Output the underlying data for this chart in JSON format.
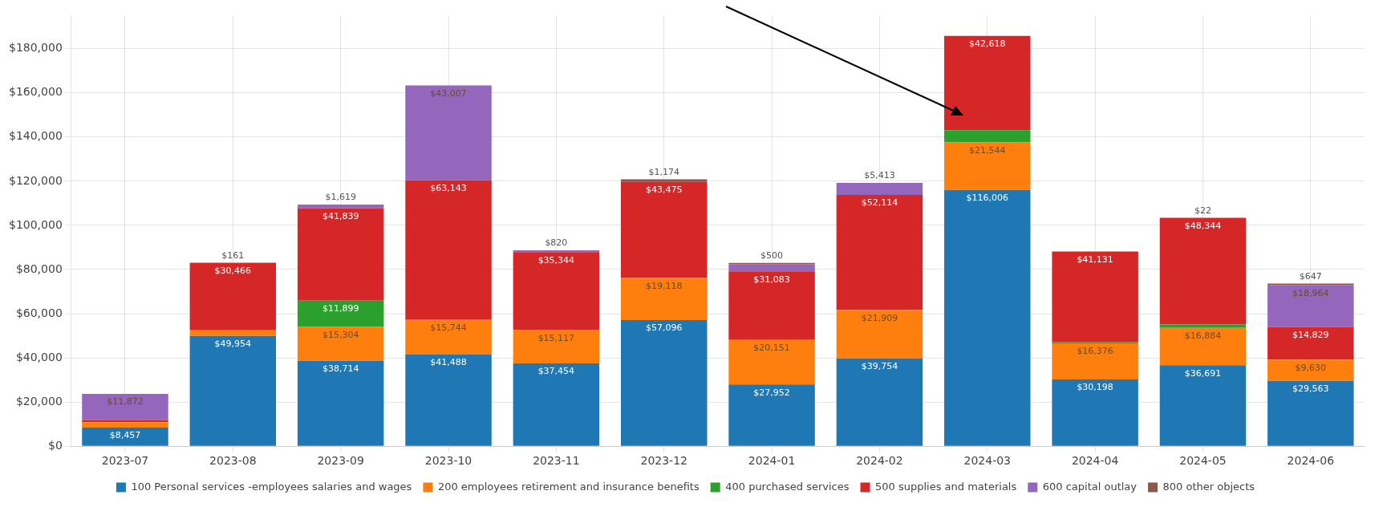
{
  "chart_data": {
    "type": "bar",
    "stacked": true,
    "categories": [
      "2023-07",
      "2023-08",
      "2023-09",
      "2023-10",
      "2023-11",
      "2023-12",
      "2024-01",
      "2024-02",
      "2024-03",
      "2024-04",
      "2024-05",
      "2024-06"
    ],
    "series": [
      {
        "name": "100 Personal services -employees salaries and wages",
        "color": "#1f77b4",
        "values": [
          8457,
          49954,
          38714,
          41488,
          37454,
          57096,
          27952,
          39754,
          116006,
          30198,
          36691,
          29563
        ],
        "value_labels": [
          "$8,457",
          "$49,954",
          "$38,714",
          "$41,488",
          "$37,454",
          "$57,096",
          "$27,952",
          "$39,754",
          "$116,006",
          "$30,198",
          "$36,691",
          "$29,563"
        ]
      },
      {
        "name": "200 employees retirement and insurance benefits",
        "color": "#ff7f0e",
        "values": [
          2400,
          2500,
          15304,
          15744,
          15117,
          19118,
          20151,
          21909,
          21544,
          16376,
          16884,
          9630
        ],
        "value_labels": [
          null,
          null,
          "$15,304",
          "$15,744",
          "$15,117",
          "$19,118",
          "$20,151",
          "$21,909",
          "$21,544",
          "$16,376",
          "$16,884",
          "$9,630"
        ]
      },
      {
        "name": "400 purchased services",
        "color": "#2ca02c",
        "values": [
          null,
          null,
          11899,
          null,
          null,
          null,
          null,
          null,
          5600,
          500,
          1500,
          null
        ],
        "value_labels": [
          null,
          null,
          "$11,899",
          null,
          null,
          null,
          null,
          null,
          null,
          null,
          null,
          null
        ]
      },
      {
        "name": "500 supplies and materials",
        "color": "#d62728",
        "values": [
          1000,
          30466,
          41839,
          63143,
          35344,
          43475,
          31083,
          52114,
          42618,
          41131,
          48344,
          14829
        ],
        "value_labels": [
          null,
          "$30,466",
          "$41,839",
          "$63,143",
          "$35,344",
          "$43,475",
          "$31,083",
          "$52,114",
          "$42,618",
          "$41,131",
          "$48,344",
          "$14,829"
        ]
      },
      {
        "name": "600 capital outlay",
        "color": "#9467bd",
        "values": [
          11872,
          null,
          1619,
          43007,
          820,
          null,
          3300,
          5413,
          null,
          null,
          null,
          18964
        ],
        "value_labels": [
          "$11,872",
          null,
          "$1,619",
          "$43,007",
          "$820",
          null,
          null,
          "$5,413",
          null,
          null,
          null,
          "$18,964"
        ]
      },
      {
        "name": "800 other objects",
        "color": "#8c564b",
        "values": [
          null,
          161,
          null,
          null,
          null,
          1174,
          500,
          null,
          null,
          null,
          22,
          647
        ],
        "value_labels": [
          null,
          "$161",
          null,
          null,
          null,
          "$1,174",
          "$500",
          null,
          null,
          null,
          "$22",
          "$647"
        ]
      }
    ],
    "ylim": [
      0,
      195000
    ],
    "yticks": [
      {
        "value": 0,
        "label": "$0"
      },
      {
        "value": 20000,
        "label": "$20,000"
      },
      {
        "value": 40000,
        "label": "$40,000"
      },
      {
        "value": 60000,
        "label": "$60,000"
      },
      {
        "value": 80000,
        "label": "$80,000"
      },
      {
        "value": 100000,
        "label": "$100,000"
      },
      {
        "value": 120000,
        "label": "$120,000"
      },
      {
        "value": 140000,
        "label": "$140,000"
      },
      {
        "value": 160000,
        "label": "$160,000"
      },
      {
        "value": 180000,
        "label": "$180,000"
      }
    ],
    "grid": true,
    "legend": "bottom"
  }
}
